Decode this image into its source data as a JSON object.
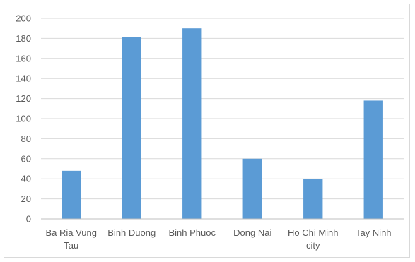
{
  "chart_data": {
    "type": "bar",
    "categories": [
      [
        "Ba Ria Vung",
        "Tau"
      ],
      [
        "Binh Duong"
      ],
      [
        "Binh Phuoc"
      ],
      [
        "Dong Nai"
      ],
      [
        "Ho Chi Minh",
        "city"
      ],
      [
        "Tay Ninh"
      ]
    ],
    "values": [
      48,
      181,
      190,
      60,
      40,
      118
    ],
    "title": "",
    "xlabel": "",
    "ylabel": "",
    "ylim": [
      0,
      200
    ],
    "yticks": [
      "0",
      "20",
      "40",
      "60",
      "80",
      "100",
      "120",
      "140",
      "160",
      "180",
      "200"
    ],
    "grid": true,
    "legend": "none",
    "bar_color": "#5b9bd5",
    "grid_color": "#d9d9d9",
    "axis_color": "#bfbfbf"
  }
}
